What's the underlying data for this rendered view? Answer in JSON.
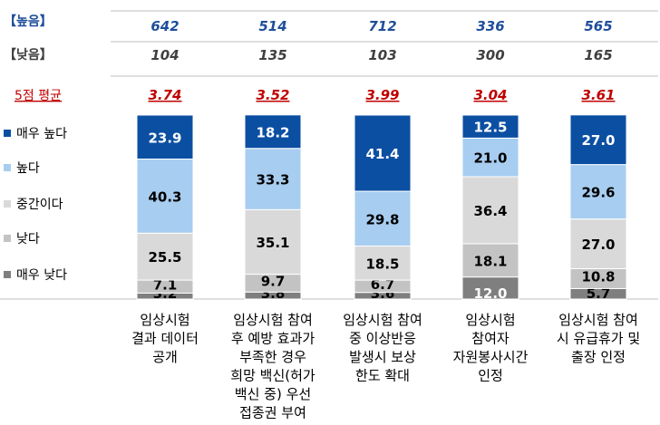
{
  "summary": {
    "high_label": "【높음】",
    "low_label": "【낮음】",
    "avg_label": "5점 평균",
    "high": [
      "642",
      "514",
      "712",
      "336",
      "565"
    ],
    "low": [
      "104",
      "135",
      "103",
      "300",
      "165"
    ],
    "avg": [
      "3.74",
      "3.52",
      "3.99",
      "3.04",
      "3.61"
    ]
  },
  "legend": [
    {
      "label": "매우 높다",
      "color": "#0b4fa2"
    },
    {
      "label": "높다",
      "color": "#a7cdf0"
    },
    {
      "label": "중간이다",
      "color": "#d9d9d9"
    },
    {
      "label": "낮다",
      "color": "#c3c3c3"
    },
    {
      "label": "매우 낮다",
      "color": "#7f7f7f"
    }
  ],
  "chart_data": {
    "type": "bar",
    "stacked": true,
    "categories": [
      [
        "임상시험",
        "결과 데이터",
        "공개"
      ],
      [
        "임상시험 참여",
        "후 예방 효과가",
        "부족한 경우",
        "희망 백신(허가",
        "백신 중) 우선",
        "접종권 부여"
      ],
      [
        "임상시험 참여",
        "중 이상반응",
        "발생시 보상",
        "한도 확대"
      ],
      [
        "임상시험",
        "참여자",
        "자원봉사시간",
        "인정"
      ],
      [
        "임상시험 참여",
        "시 유급휴가 및",
        "출장 인정"
      ]
    ],
    "series": [
      {
        "name": "매우 낮다",
        "values": [
          3.2,
          3.8,
          3.6,
          12.0,
          5.7
        ]
      },
      {
        "name": "낮다",
        "values": [
          7.1,
          9.7,
          6.7,
          18.1,
          10.8
        ]
      },
      {
        "name": "중간이다",
        "values": [
          25.5,
          35.1,
          18.5,
          36.4,
          27.0
        ]
      },
      {
        "name": "높다",
        "values": [
          40.3,
          33.3,
          29.8,
          21.0,
          29.6
        ]
      },
      {
        "name": "매우 높다",
        "values": [
          23.9,
          18.2,
          41.4,
          12.5,
          27.0
        ]
      }
    ],
    "value_labels": [
      [
        "3.2",
        "3.8",
        "3.6",
        "12.0",
        "5.7"
      ],
      [
        "7.1",
        "9.7",
        "6.7",
        "18.1",
        "10.8"
      ],
      [
        "25.5",
        "35.1",
        "18.5",
        "36.4",
        "27.0"
      ],
      [
        "40.3",
        "33.3",
        "29.8",
        "21.0",
        "29.6"
      ],
      [
        "23.9",
        "18.2",
        "41.4",
        "12.5",
        "27.0"
      ]
    ],
    "ylim": [
      0,
      100
    ],
    "colors": [
      "#7f7f7f",
      "#c3c3c3",
      "#d9d9d9",
      "#a7cdf0",
      "#0b4fa2"
    ],
    "label_colors": [
      "#000000",
      "#000000",
      "#000000",
      "#000000",
      "#ffffff"
    ],
    "label_colors_last_col": [
      "#ffffff",
      "#000000",
      "#000000",
      "#000000",
      "#ffffff"
    ]
  },
  "style": {
    "high_color": "#1f4e9a",
    "low_color": "#404040",
    "avg_color": "#c00000",
    "avg_label_color": "#c00000",
    "gridline_color": "#bfbfbf"
  }
}
